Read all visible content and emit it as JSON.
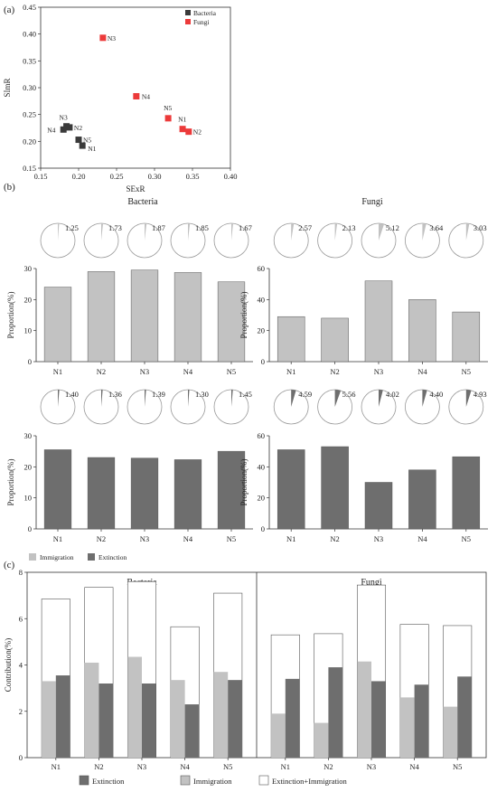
{
  "panel_labels": {
    "a": "(a)",
    "b": "(b)",
    "c": "(c)"
  },
  "colors": {
    "bacteria": "#3a3a3a",
    "fungi": "#ec3a3a",
    "immigration": "#c2c2c2",
    "extinction": "#6e6e6e",
    "combined": "#ffffff"
  },
  "chart_data": [
    {
      "id": "a",
      "type": "scatter",
      "xlabel": "SExR",
      "ylabel": "SImR",
      "xlim": [
        0.15,
        0.4
      ],
      "ylim": [
        0.15,
        0.45
      ],
      "xticks": [
        "0.15",
        "0.20",
        "0.25",
        "0.30",
        "0.35",
        "0.40"
      ],
      "yticks": [
        "0.15",
        "0.20",
        "0.25",
        "0.30",
        "0.35",
        "0.40",
        "0.45"
      ],
      "legend": [
        "Bacteria",
        "Fungi"
      ],
      "legend_position": "top-right",
      "series": [
        {
          "name": "Bacteria",
          "points": [
            {
              "label": "N1",
              "x": 0.205,
              "y": 0.192
            },
            {
              "label": "N2",
              "x": 0.188,
              "y": 0.226
            },
            {
              "label": "N3",
              "x": 0.184,
              "y": 0.228
            },
            {
              "label": "N4",
              "x": 0.18,
              "y": 0.222
            },
            {
              "label": "N5",
              "x": 0.2,
              "y": 0.203
            }
          ]
        },
        {
          "name": "Fungi",
          "points": [
            {
              "label": "N1",
              "x": 0.337,
              "y": 0.223
            },
            {
              "label": "N2",
              "x": 0.345,
              "y": 0.218
            },
            {
              "label": "N3",
              "x": 0.232,
              "y": 0.393
            },
            {
              "label": "N4",
              "x": 0.276,
              "y": 0.284
            },
            {
              "label": "N5",
              "x": 0.318,
              "y": 0.243
            }
          ]
        }
      ]
    },
    {
      "id": "b",
      "type": "bar",
      "group_titles": [
        "Bacteria",
        "Fungi"
      ],
      "categories": [
        "N1",
        "N2",
        "N3",
        "N4",
        "N5"
      ],
      "ylabel": "Proportion(%)",
      "legend": [
        "Immigration",
        "Extinction"
      ],
      "legend_position": "bottom-left",
      "subplots": [
        {
          "group": "Bacteria",
          "kind": "Immigration",
          "ylim": [
            0,
            30
          ],
          "yticks": [
            "0",
            "10",
            "20",
            "30"
          ],
          "values": [
            24,
            29,
            29.5,
            28.7,
            25.7
          ],
          "pie_values": [
            "1.25",
            "1.73",
            "1.87",
            "1.85",
            "1.67"
          ]
        },
        {
          "group": "Fungi",
          "kind": "Immigration",
          "ylim": [
            0,
            60
          ],
          "yticks": [
            "0",
            "20",
            "40",
            "60"
          ],
          "values": [
            29,
            28,
            52,
            40,
            32
          ],
          "pie_values": [
            "2.57",
            "2.13",
            "5.12",
            "3.64",
            "3.03"
          ]
        },
        {
          "group": "Bacteria",
          "kind": "Extinction",
          "ylim": [
            0,
            30
          ],
          "yticks": [
            "0",
            "10",
            "20",
            "30"
          ],
          "values": [
            25.5,
            23,
            22.8,
            22.3,
            25
          ],
          "pie_values": [
            "1.40",
            "1.36",
            "1.39",
            "1.30",
            "1.45"
          ]
        },
        {
          "group": "Fungi",
          "kind": "Extinction",
          "ylim": [
            0,
            60
          ],
          "yticks": [
            "0",
            "20",
            "40",
            "60"
          ],
          "values": [
            51,
            53,
            30,
            38,
            46.5
          ],
          "pie_values": [
            "4.59",
            "5.56",
            "4.02",
            "4.40",
            "4.93"
          ]
        }
      ]
    },
    {
      "id": "c",
      "type": "bar",
      "ylabel": "Contribution(%)",
      "ylim": [
        0,
        8
      ],
      "yticks": [
        "0",
        "2",
        "4",
        "6",
        "8"
      ],
      "categories": [
        "N1",
        "N2",
        "N3",
        "N4",
        "N5"
      ],
      "legend": [
        "Extinction",
        "Immigration",
        "Extinction+Immigration"
      ],
      "legend_position": "bottom",
      "groups": [
        {
          "title": "Bacteria",
          "combined": [
            6.85,
            7.35,
            7.6,
            5.65,
            7.1
          ],
          "immigration": [
            3.3,
            4.1,
            4.35,
            3.35,
            3.7
          ],
          "extinction": [
            3.55,
            3.2,
            3.2,
            2.3,
            3.35
          ]
        },
        {
          "title": "Fungi",
          "combined": [
            5.3,
            5.35,
            7.45,
            5.75,
            5.7
          ],
          "immigration": [
            1.9,
            1.5,
            4.15,
            2.6,
            2.2
          ],
          "extinction": [
            3.4,
            3.9,
            3.3,
            3.15,
            3.5
          ]
        }
      ]
    }
  ]
}
